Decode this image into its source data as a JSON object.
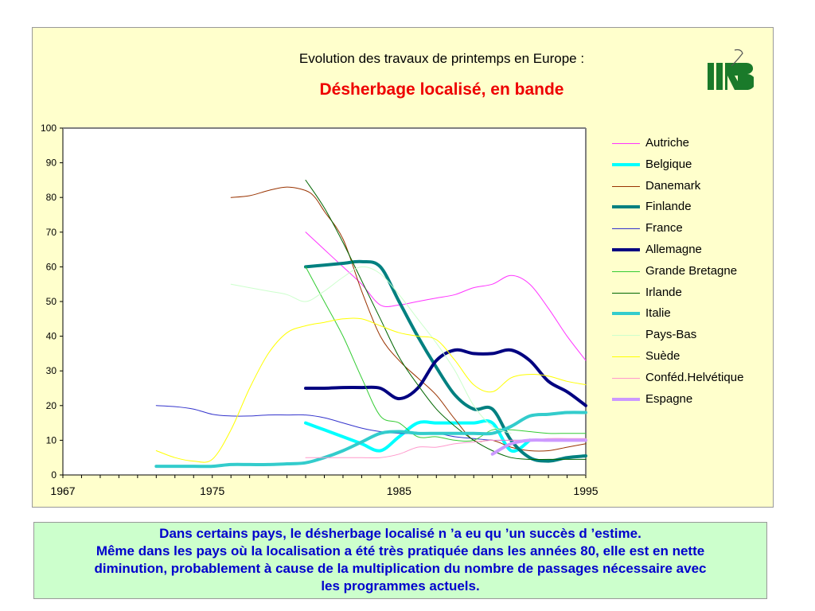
{
  "header": {
    "title": "Evolution des travaux de printemps en Europe :",
    "subtitle": "Désherbage localisé, en bande",
    "subtitle_color": "#ee0000",
    "logo_alt": "IIRB logo",
    "logo_color": "#1a7a2a"
  },
  "caption": {
    "lines": [
      "Dans certains pays, le désherbage localisé n ’a eu qu ’un succès d ’estime.",
      "Même dans les pays où la localisation a été très pratiquée dans les années 80, elle est en nette",
      "diminution, probablement à cause de la multiplication du nombre de passages nécessaire avec",
      "les programmes actuels."
    ],
    "color": "#0000cc"
  },
  "chart_data": {
    "type": "line",
    "title": "Evolution des travaux de printemps en Europe :",
    "subtitle": "Désherbage localisé, en bande",
    "xlabel": "",
    "ylabel": "",
    "xlim": [
      1967,
      1995
    ],
    "ylim": [
      0,
      100
    ],
    "x_ticks": [
      1967,
      1975,
      1985,
      1995
    ],
    "y_ticks": [
      0,
      10,
      20,
      30,
      40,
      50,
      60,
      70,
      80,
      90,
      100
    ],
    "grid": false,
    "legend_position": "right",
    "series": [
      {
        "name": "Autriche",
        "color": "#ff33ff",
        "width": 1,
        "points": [
          [
            1980,
            70
          ],
          [
            1981,
            65
          ],
          [
            1982,
            60
          ],
          [
            1983,
            55
          ],
          [
            1984,
            49
          ],
          [
            1985,
            49
          ],
          [
            1986,
            50
          ],
          [
            1987,
            51
          ],
          [
            1988,
            52
          ],
          [
            1989,
            54
          ],
          [
            1990,
            55
          ],
          [
            1991,
            57.5
          ],
          [
            1992,
            55
          ],
          [
            1993,
            48
          ],
          [
            1994,
            40
          ],
          [
            1995,
            33
          ]
        ]
      },
      {
        "name": "Belgique",
        "color": "#00ffff",
        "width": 4,
        "points": [
          [
            1980,
            15
          ],
          [
            1981,
            13
          ],
          [
            1982,
            11
          ],
          [
            1983,
            9
          ],
          [
            1984,
            7
          ],
          [
            1985,
            11
          ],
          [
            1986,
            15
          ],
          [
            1987,
            15
          ],
          [
            1988,
            15
          ],
          [
            1989,
            15
          ],
          [
            1990,
            15
          ],
          [
            1991,
            7
          ],
          [
            1992,
            10
          ]
        ]
      },
      {
        "name": "Danemark",
        "color": "#993300",
        "width": 1,
        "points": [
          [
            1976,
            80
          ],
          [
            1977,
            80.5
          ],
          [
            1978,
            82
          ],
          [
            1979,
            83
          ],
          [
            1980,
            82
          ],
          [
            1980.5,
            80
          ],
          [
            1981,
            76
          ],
          [
            1982,
            68
          ],
          [
            1983,
            53
          ],
          [
            1984,
            40
          ],
          [
            1985,
            33
          ],
          [
            1986,
            28
          ],
          [
            1987,
            23
          ],
          [
            1988,
            16
          ],
          [
            1989,
            10
          ],
          [
            1990,
            10
          ],
          [
            1991,
            8
          ],
          [
            1992,
            7
          ],
          [
            1993,
            7
          ],
          [
            1994,
            8
          ],
          [
            1995,
            9
          ]
        ]
      },
      {
        "name": "Finlande",
        "color": "#008080",
        "width": 4,
        "points": [
          [
            1980,
            60
          ],
          [
            1981,
            60.5
          ],
          [
            1982,
            61
          ],
          [
            1983,
            61.5
          ],
          [
            1984,
            60
          ],
          [
            1985,
            50
          ],
          [
            1986,
            40
          ],
          [
            1987,
            31
          ],
          [
            1988,
            23
          ],
          [
            1989,
            19
          ],
          [
            1990,
            19
          ],
          [
            1991,
            10
          ],
          [
            1992,
            5
          ],
          [
            1993,
            4
          ],
          [
            1994,
            5
          ],
          [
            1995,
            5.5
          ]
        ]
      },
      {
        "name": "France",
        "color": "#3333cc",
        "width": 1,
        "points": [
          [
            1972,
            20
          ],
          [
            1973,
            19.7
          ],
          [
            1974,
            19
          ],
          [
            1975,
            17.5
          ],
          [
            1976,
            17
          ],
          [
            1977,
            17
          ],
          [
            1978,
            17.3
          ],
          [
            1979,
            17.3
          ],
          [
            1980,
            17.3
          ],
          [
            1981,
            16.5
          ],
          [
            1982,
            15
          ],
          [
            1983,
            13.5
          ],
          [
            1984,
            12.5
          ],
          [
            1985,
            12
          ],
          [
            1986,
            12
          ],
          [
            1987,
            12
          ],
          [
            1988,
            11
          ],
          [
            1989,
            10.5
          ],
          [
            1990,
            10
          ],
          [
            1991,
            10
          ],
          [
            1992,
            10
          ],
          [
            1993,
            10
          ],
          [
            1994,
            10
          ],
          [
            1995,
            10
          ]
        ]
      },
      {
        "name": "Allemagne",
        "color": "#000080",
        "width": 4,
        "points": [
          [
            1980,
            25
          ],
          [
            1981,
            25
          ],
          [
            1982,
            25.2
          ],
          [
            1983,
            25.2
          ],
          [
            1984,
            25
          ],
          [
            1985,
            22
          ],
          [
            1986,
            25
          ],
          [
            1987,
            33
          ],
          [
            1988,
            36
          ],
          [
            1989,
            35
          ],
          [
            1990,
            35
          ],
          [
            1991,
            36
          ],
          [
            1992,
            33
          ],
          [
            1993,
            27
          ],
          [
            1994,
            24
          ],
          [
            1995,
            20
          ]
        ]
      },
      {
        "name": "Grande Bretagne",
        "color": "#33cc33",
        "width": 1,
        "points": [
          [
            1980,
            60
          ],
          [
            1981,
            50
          ],
          [
            1982,
            40
          ],
          [
            1983,
            28
          ],
          [
            1984,
            17
          ],
          [
            1985,
            15
          ],
          [
            1986,
            11
          ],
          [
            1987,
            11
          ],
          [
            1988,
            10
          ],
          [
            1989,
            10
          ],
          [
            1990,
            13
          ],
          [
            1991,
            13
          ],
          [
            1992,
            12.5
          ],
          [
            1993,
            12
          ],
          [
            1994,
            12
          ],
          [
            1995,
            12
          ]
        ]
      },
      {
        "name": "Irlande",
        "color": "#006600",
        "width": 1,
        "points": [
          [
            1980,
            85
          ],
          [
            1981,
            77
          ],
          [
            1982,
            67
          ],
          [
            1983,
            56
          ],
          [
            1984,
            45
          ],
          [
            1985,
            34
          ],
          [
            1986,
            26
          ],
          [
            1987,
            19
          ],
          [
            1988,
            14
          ],
          [
            1989,
            10
          ],
          [
            1990,
            7
          ],
          [
            1991,
            5
          ],
          [
            1992,
            4.5
          ],
          [
            1993,
            4.5
          ],
          [
            1994,
            4.5
          ],
          [
            1995,
            4.5
          ]
        ]
      },
      {
        "name": "Italie",
        "color": "#33cccc",
        "width": 4,
        "points": [
          [
            1972,
            2.5
          ],
          [
            1973,
            2.5
          ],
          [
            1974,
            2.5
          ],
          [
            1975,
            2.5
          ],
          [
            1976,
            3
          ],
          [
            1977,
            3
          ],
          [
            1978,
            3
          ],
          [
            1979,
            3.2
          ],
          [
            1980,
            3.5
          ],
          [
            1981,
            5
          ],
          [
            1982,
            7
          ],
          [
            1983,
            9.5
          ],
          [
            1984,
            12
          ],
          [
            1985,
            12.5
          ],
          [
            1986,
            12
          ],
          [
            1987,
            12
          ],
          [
            1988,
            12
          ],
          [
            1989,
            12
          ],
          [
            1990,
            12
          ],
          [
            1991,
            14
          ],
          [
            1992,
            17
          ],
          [
            1993,
            17.5
          ],
          [
            1994,
            18
          ],
          [
            1995,
            18
          ]
        ]
      },
      {
        "name": "Pays-Bas",
        "color": "#ccffcc",
        "width": 1,
        "points": [
          [
            1976,
            55
          ],
          [
            1977,
            54
          ],
          [
            1978,
            53
          ],
          [
            1979,
            52
          ],
          [
            1980,
            50
          ],
          [
            1981,
            53
          ],
          [
            1982,
            57
          ],
          [
            1983,
            60
          ],
          [
            1984,
            58
          ],
          [
            1985,
            52
          ],
          [
            1986,
            45
          ],
          [
            1987,
            38
          ],
          [
            1988,
            30
          ],
          [
            1989,
            20
          ],
          [
            1990,
            14
          ],
          [
            1991,
            12
          ]
        ]
      },
      {
        "name": "Suède",
        "color": "#ffff00",
        "width": 1,
        "points": [
          [
            1972,
            7
          ],
          [
            1973,
            5
          ],
          [
            1974,
            4
          ],
          [
            1975,
            4.5
          ],
          [
            1976,
            13
          ],
          [
            1977,
            25
          ],
          [
            1978,
            35
          ],
          [
            1979,
            41
          ],
          [
            1980,
            43
          ],
          [
            1981,
            44
          ],
          [
            1982,
            45
          ],
          [
            1983,
            45
          ],
          [
            1984,
            43
          ],
          [
            1985,
            41
          ],
          [
            1986,
            40
          ],
          [
            1987,
            39
          ],
          [
            1988,
            33
          ],
          [
            1989,
            26
          ],
          [
            1990,
            24
          ],
          [
            1991,
            28
          ],
          [
            1992,
            29
          ],
          [
            1993,
            28.5
          ],
          [
            1994,
            27
          ],
          [
            1995,
            26
          ]
        ]
      },
      {
        "name": "Conféd.Helvétique",
        "color": "#ff99cc",
        "width": 1,
        "points": [
          [
            1980,
            5
          ],
          [
            1981,
            5
          ],
          [
            1982,
            5
          ],
          [
            1983,
            5
          ],
          [
            1984,
            5
          ],
          [
            1985,
            6
          ],
          [
            1986,
            8
          ],
          [
            1987,
            8
          ],
          [
            1988,
            9
          ],
          [
            1989,
            9.5
          ],
          [
            1990,
            10
          ],
          [
            1991,
            10
          ],
          [
            1992,
            10
          ],
          [
            1993,
            10.5
          ],
          [
            1994,
            10.5
          ],
          [
            1995,
            10.5
          ]
        ]
      },
      {
        "name": "Espagne",
        "color": "#cc99ff",
        "width": 4,
        "points": [
          [
            1990,
            6
          ],
          [
            1991,
            9
          ],
          [
            1992,
            10
          ],
          [
            1993,
            10
          ],
          [
            1994,
            10
          ],
          [
            1995,
            10
          ]
        ]
      }
    ]
  }
}
